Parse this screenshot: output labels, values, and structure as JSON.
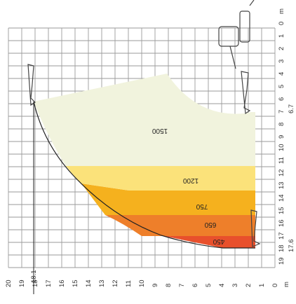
{
  "diagram": {
    "unit": "m",
    "reach_ticks": [
      "20",
      "19",
      "18",
      "17",
      "16",
      "15",
      "14",
      "13",
      "12",
      "11",
      "10",
      "9",
      "8",
      "7",
      "6",
      "5",
      "4",
      "3",
      "2",
      "1",
      "0"
    ],
    "height_ticks": [
      "0",
      "1",
      "2",
      "3",
      "4",
      "5",
      "6",
      "7",
      "8",
      "9",
      "10",
      "11",
      "12",
      "13",
      "14",
      "15",
      "16",
      "17",
      "18",
      "19"
    ],
    "special_labels": {
      "reach_max": "18.1",
      "height_a": "6.7",
      "height_b": "17.6"
    },
    "zones": [
      {
        "label": "1500",
        "color": "#e8502c"
      },
      {
        "label": "1200",
        "color": "#ee7f2a"
      },
      {
        "label": "750",
        "color": "#f5b11e"
      },
      {
        "label": "650",
        "color": "#fbe27a"
      },
      {
        "label": "450",
        "color": "#f1f3dd"
      }
    ]
  }
}
